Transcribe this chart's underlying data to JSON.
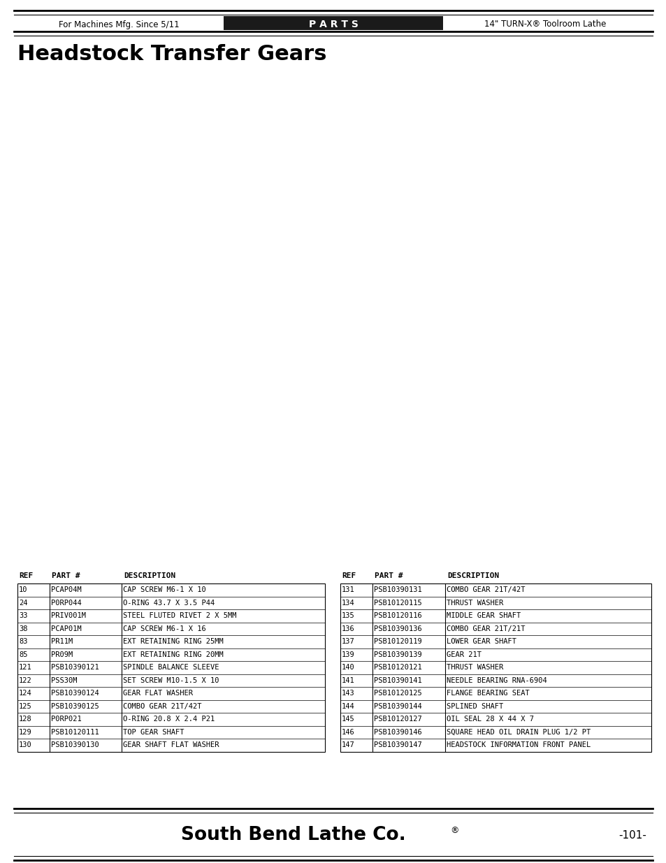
{
  "header_left": "For Machines Mfg. Since 5/11",
  "header_center": "P A R T S",
  "header_right": "14\" TURN-X® Toolroom Lathe",
  "page_title": "Headstock Transfer Gears",
  "page_number": "-101-",
  "footer_text": "South Bend Lathe Co.",
  "footer_dot": "®",
  "table_headers": [
    "REF",
    "PART #",
    "DESCRIPTION"
  ],
  "table_left": [
    [
      "10",
      "PCAP04M",
      "CAP SCREW M6-1 X 10"
    ],
    [
      "24",
      "P0RP044",
      "O-RING 43.7 X 3.5 P44"
    ],
    [
      "33",
      "PRIV001M",
      "STEEL FLUTED RIVET 2 X 5MM"
    ],
    [
      "38",
      "PCAP01M",
      "CAP SCREW M6-1 X 16"
    ],
    [
      "83",
      "PR11M",
      "EXT RETAINING RING 25MM"
    ],
    [
      "85",
      "PR09M",
      "EXT RETAINING RING 20MM"
    ],
    [
      "121",
      "PSB10390121",
      "SPINDLE BALANCE SLEEVE"
    ],
    [
      "122",
      "PSS30M",
      "SET SCREW M10-1.5 X 10"
    ],
    [
      "124",
      "PSB10390124",
      "GEAR FLAT WASHER"
    ],
    [
      "125",
      "PSB10390125",
      "COMBO GEAR 21T/42T"
    ],
    [
      "128",
      "P0RP021",
      "O-RING 20.8 X 2.4 P21"
    ],
    [
      "129",
      "PSB10120111",
      "TOP GEAR SHAFT"
    ],
    [
      "130",
      "PSB10390130",
      "GEAR SHAFT FLAT WASHER"
    ]
  ],
  "table_right": [
    [
      "131",
      "PSB10390131",
      "COMBO GEAR 21T/42T"
    ],
    [
      "134",
      "PSB10120115",
      "THRUST WASHER"
    ],
    [
      "135",
      "PSB10120116",
      "MIDDLE GEAR SHAFT"
    ],
    [
      "136",
      "PSB10390136",
      "COMBO GEAR 21T/21T"
    ],
    [
      "137",
      "PSB10120119",
      "LOWER GEAR SHAFT"
    ],
    [
      "139",
      "PSB10390139",
      "GEAR 21T"
    ],
    [
      "140",
      "PSB10120121",
      "THRUST WASHER"
    ],
    [
      "141",
      "PSB10390141",
      "NEEDLE BEARING RNA-6904"
    ],
    [
      "143",
      "PSB10120125",
      "FLANGE BEARING SEAT"
    ],
    [
      "144",
      "PSB10390144",
      "SPLINED SHAFT"
    ],
    [
      "145",
      "PSB10120127",
      "OIL SEAL 28 X 44 X 7"
    ],
    [
      "146",
      "PSB10390146",
      "SQUARE HEAD OIL DRAIN PLUG 1/2 PT"
    ],
    [
      "147",
      "PSB10390147",
      "HEADSTOCK INFORMATION FRONT PANEL"
    ]
  ],
  "bg_color": "#ffffff",
  "header_bg": "#1a1a1a",
  "header_text_color": "#ffffff",
  "line_color": "#000000",
  "table_font_size": 7.5
}
